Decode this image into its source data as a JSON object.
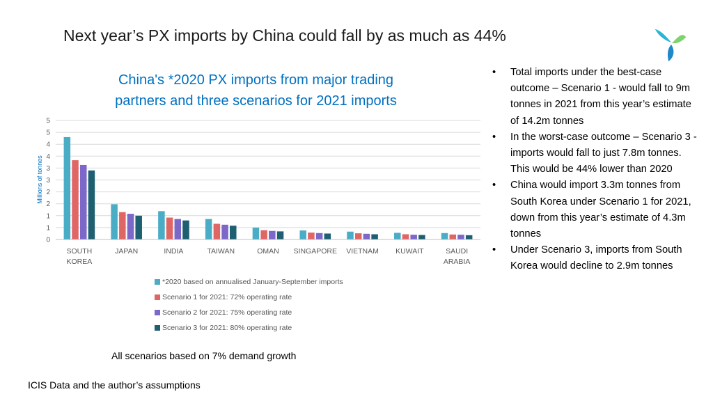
{
  "slide": {
    "title": "Next year’s PX imports by China could fall by as much as 44%",
    "note": "All scenarios based on 7% demand growth",
    "source": "ICIS Data and the author’s assumptions"
  },
  "logo": {
    "icon": "tri-petal-logo-icon",
    "colors": [
      "#29B6D6",
      "#7FD36B",
      "#1E88C8"
    ]
  },
  "bullets": [
    "Total imports under the best-case outcome – Scenario 1 - would fall to 9m tonnes  in 2021 from this year’s estimate of 14.2m tonnes",
    "In the worst-case outcome – Scenario 3 - imports would fall to just 7.8m tonnes. This would be 44% lower than 2020",
    "China would import 3.3m tonnes from South Korea under Scenario 1 for 2021, down from this year’s estimate of 4.3m tonnes",
    "Under Scenario 3, imports from South Korea would decline to 2.9m tonnes"
  ],
  "chart_data": {
    "type": "bar",
    "title_lines": [
      "China's *2020 PX imports from major trading",
      "partners and three scenarios for 2021 imports"
    ],
    "ylabel": "Millions of tonnes",
    "ylim": [
      0,
      5
    ],
    "y_tick_labels": [
      "0",
      "1",
      "1",
      "2",
      "2",
      "3",
      "3",
      "4",
      "4",
      "5",
      "5"
    ],
    "grid": true,
    "legend_position": "bottom",
    "categories": [
      [
        "SOUTH",
        "KOREA"
      ],
      [
        "JAPAN"
      ],
      [
        "INDIA"
      ],
      [
        "TAIWAN"
      ],
      [
        "OMAN"
      ],
      [
        "SINGAPORE"
      ],
      [
        "VIETNAM"
      ],
      [
        "KUWAIT"
      ],
      [
        "SAUDI",
        "ARABIA"
      ]
    ],
    "series": [
      {
        "name": "*2020 based on annualised January-September imports",
        "color": "#4BACC6",
        "values": [
          4.3,
          1.48,
          1.19,
          0.86,
          0.5,
          0.38,
          0.33,
          0.28,
          0.27
        ]
      },
      {
        "name": "Scenario 1 for 2021: 72% operating rate",
        "color": "#E06666",
        "values": [
          3.33,
          1.15,
          0.92,
          0.66,
          0.39,
          0.29,
          0.26,
          0.22,
          0.21
        ]
      },
      {
        "name": "Scenario 2 for 2021: 75% operating rate",
        "color": "#7B68C8",
        "values": [
          3.13,
          1.08,
          0.86,
          0.62,
          0.36,
          0.27,
          0.24,
          0.2,
          0.2
        ]
      },
      {
        "name": "Scenario 3 for 2021: 80% operating rate",
        "color": "#1F5F72",
        "values": [
          2.9,
          1.0,
          0.8,
          0.58,
          0.34,
          0.25,
          0.22,
          0.19,
          0.18
        ]
      }
    ]
  }
}
